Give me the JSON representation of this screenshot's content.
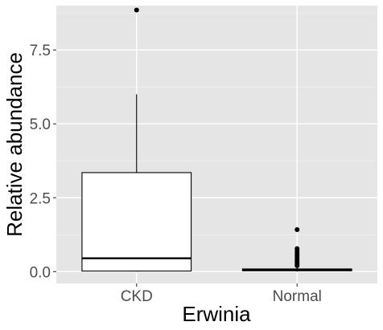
{
  "chart_data": {
    "type": "boxplot",
    "xlabel": "Erwinia",
    "ylabel": "Relative abundance",
    "categories": [
      "CKD",
      "Normal"
    ],
    "ylim": [
      -0.4,
      9.0
    ],
    "y_ticks": [
      0.0,
      2.5,
      5.0,
      7.5
    ],
    "y_tick_labels": [
      "0.0",
      "2.5",
      "5.0",
      "7.5"
    ],
    "grid": true,
    "boxes": [
      {
        "category": "CKD",
        "q1": 0.02,
        "median": 0.45,
        "q3": 3.35,
        "whisker_low": 0.0,
        "whisker_high": 6.0,
        "outliers": [
          8.85
        ]
      },
      {
        "category": "Normal",
        "q1": 0.03,
        "median": 0.05,
        "q3": 0.09,
        "whisker_low": 0.0,
        "whisker_high": 0.14,
        "outliers": [
          0.2,
          0.25,
          0.3,
          0.35,
          0.4,
          0.48,
          0.55,
          0.62,
          0.7,
          0.78,
          1.42
        ]
      }
    ],
    "colors": {
      "panel": "#e5e5e5",
      "grid_major": "#ffffff",
      "box_fill": "#ffffff",
      "box_stroke": "#000000",
      "point": "#000000"
    }
  }
}
